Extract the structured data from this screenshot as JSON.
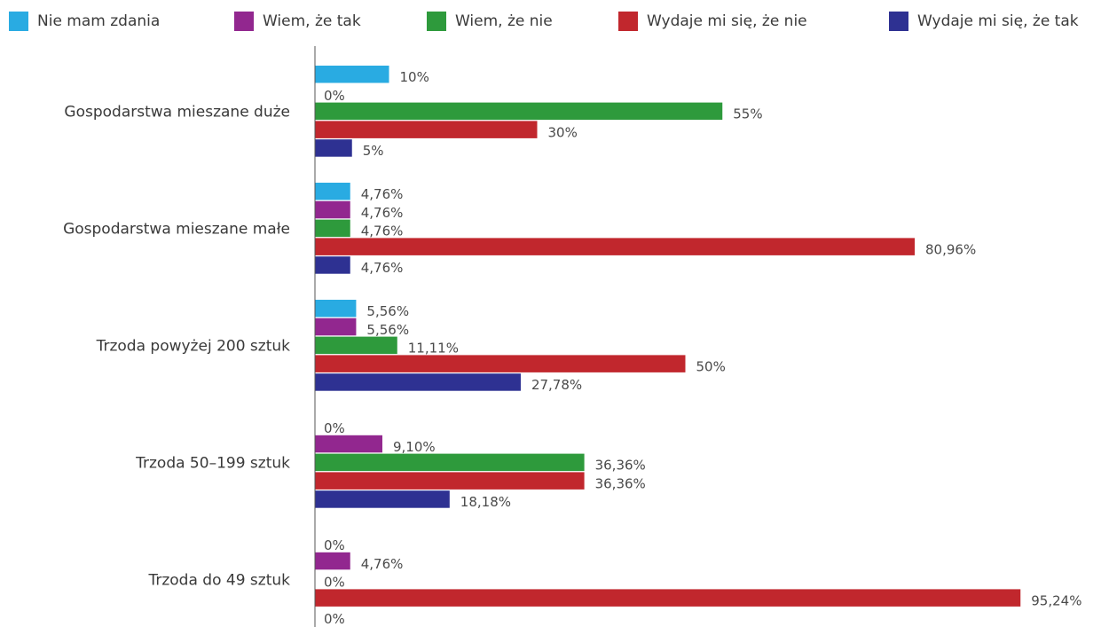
{
  "chart_data": {
    "type": "bar",
    "orientation": "horizontal",
    "legend_position": "top",
    "grid": false,
    "xlim": [
      0,
      100
    ],
    "categories": [
      "Gospodarstwa mieszane duże",
      "Gospodarstwa mieszane małe",
      "Trzoda powyżej 200 sztuk",
      "Trzoda 50–199 sztuk",
      "Trzoda do 49 sztuk"
    ],
    "series": [
      {
        "name": "Nie mam zdania",
        "color": "#29abe2",
        "values": [
          10,
          4.76,
          5.56,
          0,
          0
        ],
        "labels": [
          "10%",
          "4,76%",
          "5,56%",
          "0%",
          "0%"
        ]
      },
      {
        "name": "Wiem, że tak",
        "color": "#92278f",
        "values": [
          0,
          4.76,
          5.56,
          9.1,
          4.76
        ],
        "labels": [
          "0%",
          "4,76%",
          "5,56%",
          "9,10%",
          "4,76%"
        ]
      },
      {
        "name": "Wiem, że nie",
        "color": "#2e9a3c",
        "values": [
          55,
          4.76,
          11.11,
          36.36,
          0
        ],
        "labels": [
          "55%",
          "4,76%",
          "11,11%",
          "36,36%",
          "0%"
        ]
      },
      {
        "name": "Wydaje mi się, że nie",
        "color": "#c1272d",
        "values": [
          30,
          80.96,
          50,
          36.36,
          95.24
        ],
        "labels": [
          "30%",
          "80,96%",
          "50%",
          "36,36%",
          "95,24%"
        ]
      },
      {
        "name": "Wydaje mi się, że tak",
        "color": "#2e3192",
        "values": [
          5,
          4.76,
          27.78,
          18.18,
          0
        ],
        "labels": [
          "5%",
          "4,76%",
          "27,78%",
          "18,18%",
          "0%"
        ]
      }
    ]
  }
}
